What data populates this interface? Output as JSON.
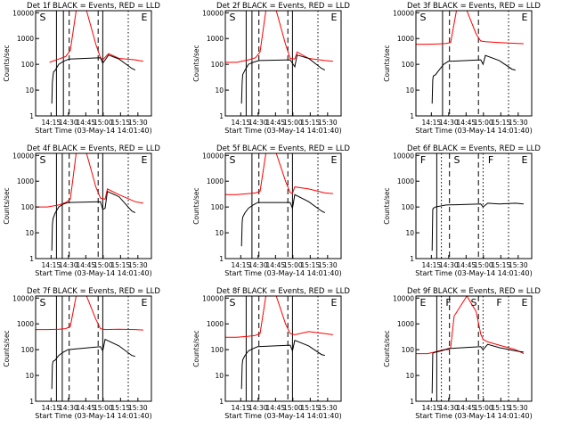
{
  "chart_data": {
    "type": "line",
    "title": "",
    "layout": "3x3 grid",
    "xlabel": "Start Time (03-May-14 14:01:40)",
    "ylabel": "Counts/sec",
    "x_tick_labels": [
      "14:15",
      "14:30",
      "14:45",
      "15:00",
      "15:15",
      "15:30"
    ],
    "y_tick_labels": [
      "1",
      "10",
      "100",
      "1000",
      "10000"
    ],
    "x_unit": "minutes after 14:01:40",
    "xlim": [
      0,
      100
    ],
    "ylim": [
      1,
      12000
    ],
    "yscale": "log",
    "series_colors": {
      "events": "#000000",
      "lld": "#ff0000"
    },
    "panels": [
      {
        "title": "Det 1f BLACK = Events, RED = LLD",
        "marker_labels": [
          "S",
          "E"
        ],
        "vlines": [
          {
            "x": 18,
            "style": "solid"
          },
          {
            "x": 24,
            "style": "solid"
          },
          {
            "x": 29,
            "style": "dashed"
          },
          {
            "x": 54,
            "style": "dashed"
          },
          {
            "x": 58,
            "style": "solid"
          },
          {
            "x": 80,
            "style": "dotted"
          }
        ],
        "lld": {
          "x": [
            12,
            20,
            26,
            30,
            35,
            44,
            52,
            56,
            58,
            63,
            72,
            86,
            93
          ],
          "y": [
            120,
            160,
            200,
            350,
            12000,
            12000,
            600,
            180,
            150,
            260,
            170,
            150,
            130
          ]
        },
        "events": {
          "x": [
            14,
            14.5,
            15,
            15.5,
            17,
            20,
            24,
            29,
            56,
            58,
            63,
            72,
            83,
            86
          ],
          "y": [
            3,
            20,
            35,
            50,
            60,
            100,
            130,
            160,
            180,
            110,
            230,
            160,
            70,
            60
          ]
        }
      },
      {
        "title": "Det 2f BLACK = Events, RED = LLD",
        "marker_labels": [
          "S",
          "E"
        ],
        "vlines": [
          {
            "x": 18,
            "style": "solid"
          },
          {
            "x": 23,
            "style": "solid"
          },
          {
            "x": 29,
            "style": "dashed"
          },
          {
            "x": 54,
            "style": "dashed"
          },
          {
            "x": 58,
            "style": "solid"
          },
          {
            "x": 80,
            "style": "dotted"
          }
        ],
        "lld": {
          "x": [
            0,
            10,
            20,
            26,
            30,
            35,
            44,
            52,
            56,
            60,
            62,
            72,
            86,
            93
          ],
          "y": [
            120,
            120,
            150,
            180,
            300,
            12000,
            12000,
            600,
            170,
            160,
            300,
            170,
            140,
            130
          ]
        },
        "events": {
          "x": [
            14,
            14.5,
            15,
            17,
            20,
            24,
            29,
            56,
            60,
            62,
            72,
            83,
            86
          ],
          "y": [
            3,
            20,
            40,
            60,
            100,
            120,
            140,
            150,
            80,
            230,
            170,
            70,
            60
          ]
        }
      },
      {
        "title": "Det 3f BLACK = Events, RED = LLD",
        "marker_labels": [
          "S",
          "E"
        ],
        "vlines": [
          {
            "x": 23,
            "style": "solid"
          },
          {
            "x": 29,
            "style": "dashed"
          },
          {
            "x": 54,
            "style": "dashed"
          },
          {
            "x": 80,
            "style": "dotted"
          }
        ],
        "lld": {
          "x": [
            0,
            10,
            20,
            26,
            30,
            35,
            44,
            52,
            56,
            60,
            72,
            86,
            93
          ],
          "y": [
            600,
            600,
            620,
            640,
            700,
            12000,
            12000,
            1500,
            800,
            750,
            700,
            650,
            630
          ]
        },
        "events": {
          "x": [
            14,
            14.5,
            15,
            17,
            20,
            24,
            28,
            56,
            58,
            60,
            72,
            83,
            86
          ],
          "y": [
            3,
            25,
            35,
            40,
            60,
            100,
            130,
            150,
            100,
            220,
            140,
            65,
            60
          ]
        }
      },
      {
        "title": "Det 4f BLACK = Events, RED = LLD",
        "marker_labels": [
          "S",
          "E"
        ],
        "vlines": [
          {
            "x": 18,
            "style": "solid"
          },
          {
            "x": 23,
            "style": "solid"
          },
          {
            "x": 29,
            "style": "dashed"
          },
          {
            "x": 54,
            "style": "dashed"
          },
          {
            "x": 58,
            "style": "solid"
          },
          {
            "x": 80,
            "style": "dotted"
          }
        ],
        "lld": {
          "x": [
            0,
            10,
            20,
            26,
            30,
            35,
            44,
            52,
            56,
            60,
            62,
            72,
            86,
            93
          ],
          "y": [
            100,
            100,
            120,
            150,
            200,
            12000,
            12000,
            600,
            220,
            200,
            500,
            300,
            160,
            140
          ]
        },
        "events": {
          "x": [
            14,
            14.5,
            15,
            17,
            20,
            24,
            28,
            56,
            58,
            60,
            62,
            72,
            83,
            86
          ],
          "y": [
            2,
            20,
            35,
            60,
            100,
            130,
            150,
            160,
            80,
            90,
            400,
            250,
            70,
            60
          ]
        }
      },
      {
        "title": "Det 5f BLACK = Events, RED = LLD",
        "marker_labels": [
          "S",
          "E"
        ],
        "vlines": [
          {
            "x": 23,
            "style": "solid"
          },
          {
            "x": 29,
            "style": "dashed"
          },
          {
            "x": 54,
            "style": "dashed"
          },
          {
            "x": 58,
            "style": "solid"
          },
          {
            "x": 80,
            "style": "dotted"
          }
        ],
        "lld": {
          "x": [
            0,
            10,
            20,
            26,
            30,
            35,
            44,
            52,
            56,
            58,
            60,
            72,
            86,
            93
          ],
          "y": [
            300,
            300,
            330,
            350,
            400,
            12000,
            12000,
            1000,
            360,
            340,
            600,
            500,
            350,
            330
          ]
        },
        "events": {
          "x": [
            14,
            14.5,
            15,
            17,
            20,
            24,
            28,
            56,
            58,
            60,
            72,
            83,
            86
          ],
          "y": [
            3,
            25,
            40,
            60,
            90,
            120,
            150,
            150,
            90,
            300,
            160,
            70,
            60
          ]
        }
      },
      {
        "title": "Det 6f BLACK = Events, RED = LLD",
        "marker_labels": [
          "F",
          "S",
          "F",
          "E"
        ],
        "vlines": [
          {
            "x": 18,
            "style": "solid"
          },
          {
            "x": 22,
            "style": "dotted"
          },
          {
            "x": 29,
            "style": "dashed"
          },
          {
            "x": 54,
            "style": "dashed"
          },
          {
            "x": 58,
            "style": "dotted"
          },
          {
            "x": 80,
            "style": "dotted"
          }
        ],
        "lld": {
          "x": [],
          "y": []
        },
        "events": {
          "x": [
            14,
            14.5,
            15,
            17,
            22,
            26,
            56,
            58,
            62,
            72,
            86,
            93
          ],
          "y": [
            2,
            80,
            90,
            100,
            110,
            120,
            130,
            100,
            140,
            130,
            140,
            130
          ]
        }
      },
      {
        "title": "Det 7f BLACK = Events, RED = LLD",
        "marker_labels": [
          "S",
          "E"
        ],
        "vlines": [
          {
            "x": 18,
            "style": "solid"
          },
          {
            "x": 23,
            "style": "solid"
          },
          {
            "x": 29,
            "style": "dashed"
          },
          {
            "x": 54,
            "style": "dashed"
          },
          {
            "x": 58,
            "style": "solid"
          },
          {
            "x": 80,
            "style": "dotted"
          }
        ],
        "lld": {
          "x": [
            0,
            10,
            20,
            26,
            30,
            35,
            44,
            52,
            56,
            60,
            72,
            86,
            93
          ],
          "y": [
            600,
            600,
            620,
            650,
            800,
            12000,
            12000,
            1500,
            650,
            600,
            620,
            600,
            580
          ]
        },
        "events": {
          "x": [
            14,
            14.5,
            15,
            17,
            20,
            24,
            28,
            56,
            58,
            60,
            72,
            83,
            86
          ],
          "y": [
            3,
            25,
            35,
            40,
            60,
            80,
            100,
            130,
            90,
            250,
            140,
            60,
            55
          ]
        }
      },
      {
        "title": "Det 8f BLACK = Events, RED = LLD",
        "marker_labels": [
          "S",
          "E"
        ],
        "vlines": [
          {
            "x": 18,
            "style": "solid"
          },
          {
            "x": 23,
            "style": "solid"
          },
          {
            "x": 29,
            "style": "dashed"
          },
          {
            "x": 54,
            "style": "dashed"
          },
          {
            "x": 58,
            "style": "solid"
          },
          {
            "x": 80,
            "style": "dotted"
          }
        ],
        "lld": {
          "x": [
            0,
            10,
            20,
            26,
            30,
            35,
            44,
            52,
            56,
            60,
            72,
            86,
            93
          ],
          "y": [
            300,
            300,
            330,
            360,
            420,
            12000,
            12000,
            1000,
            420,
            380,
            500,
            420,
            380
          ]
        },
        "events": {
          "x": [
            14,
            14.5,
            15,
            17,
            20,
            24,
            28,
            56,
            58,
            60,
            72,
            83,
            86
          ],
          "y": [
            3,
            25,
            40,
            60,
            90,
            110,
            130,
            150,
            90,
            230,
            140,
            65,
            60
          ]
        }
      },
      {
        "title": "Det 9f BLACK = Events, RED = LLD",
        "marker_labels": [
          "E",
          "F",
          "S",
          "F",
          "E"
        ],
        "vlines": [
          {
            "x": 18,
            "style": "solid"
          },
          {
            "x": 22,
            "style": "dotted"
          },
          {
            "x": 29,
            "style": "dashed"
          },
          {
            "x": 54,
            "style": "dashed"
          },
          {
            "x": 58,
            "style": "dotted"
          },
          {
            "x": 80,
            "style": "dotted"
          }
        ],
        "lld": {
          "x": [
            0,
            10,
            16,
            20,
            24,
            28,
            30,
            33,
            44,
            52,
            56,
            58,
            62,
            72,
            86,
            93
          ],
          "y": [
            70,
            70,
            80,
            90,
            100,
            100,
            120,
            2000,
            12000,
            3000,
            400,
            250,
            200,
            150,
            100,
            70
          ]
        },
        "events": {
          "x": [
            14,
            14.5,
            15,
            17,
            22,
            28,
            56,
            58,
            62,
            72,
            86,
            93
          ],
          "y": [
            2,
            70,
            75,
            80,
            90,
            110,
            130,
            100,
            160,
            120,
            90,
            80
          ]
        }
      }
    ]
  }
}
